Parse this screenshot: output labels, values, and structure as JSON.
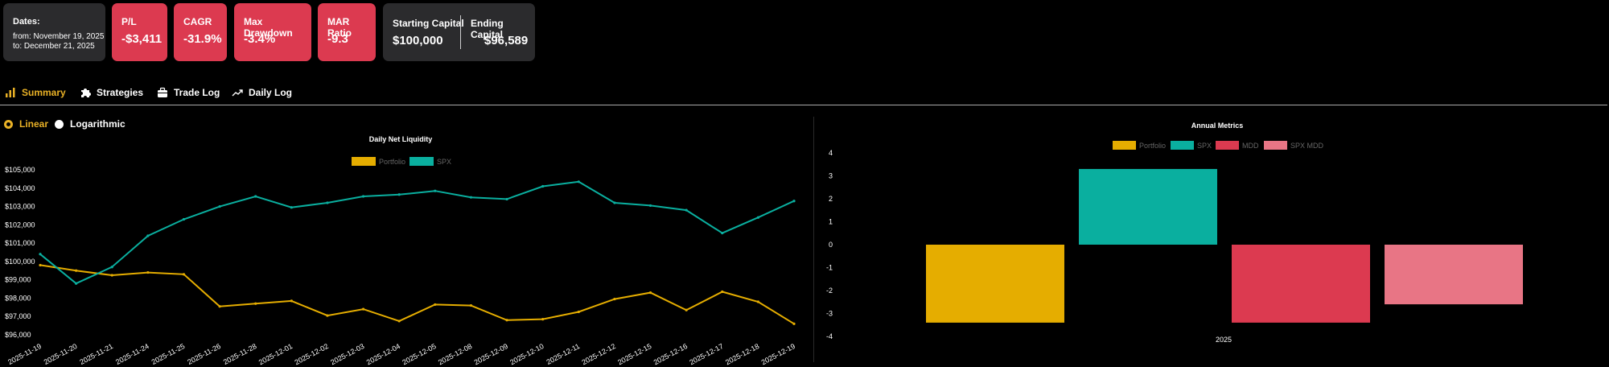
{
  "summary": {
    "dates": {
      "label": "Dates:",
      "from": "from: November 19, 2025",
      "to": "to: December 21, 2025"
    },
    "pl": {
      "label": "P/L",
      "value": "-$3,411"
    },
    "cagr": {
      "label": "CAGR",
      "value": "-31.9%"
    },
    "mdd": {
      "label": "Max Drawdown",
      "value": "-3.4%"
    },
    "mar": {
      "label": "MAR Ratio",
      "value": "-9.3"
    },
    "capital": {
      "start_label": "Starting Capital",
      "start_value": "$100,000",
      "end_label": "Ending Capital",
      "end_value": "$96,589"
    }
  },
  "tabs": [
    {
      "label": "Summary",
      "icon": "bar-chart-icon",
      "active": true
    },
    {
      "label": "Strategies",
      "icon": "puzzle-icon",
      "active": false
    },
    {
      "label": "Trade Log",
      "icon": "briefcase-icon",
      "active": false
    },
    {
      "label": "Daily Log",
      "icon": "trend-up-icon",
      "active": false
    }
  ],
  "scale": {
    "linear": "Linear",
    "logarithmic": "Logarithmic",
    "selected": "linear"
  },
  "colors": {
    "accent": "#e9b126",
    "portfolio": "#e5ad00",
    "spx": "#0aaf9f",
    "mdd": "#dc3a50",
    "spx_mdd": "#e87585",
    "negative_card": "#dc3a50",
    "dark_card": "#2b2b2d"
  },
  "chart_data": [
    {
      "type": "line",
      "title": "Daily Net Liquidity",
      "x": [
        "2025-11-19",
        "2025-11-20",
        "2025-11-21",
        "2025-11-24",
        "2025-11-25",
        "2025-11-26",
        "2025-11-28",
        "2025-12-01",
        "2025-12-02",
        "2025-12-03",
        "2025-12-04",
        "2025-12-05",
        "2025-12-08",
        "2025-12-09",
        "2025-12-10",
        "2025-12-11",
        "2025-12-12",
        "2025-12-15",
        "2025-12-16",
        "2025-12-17",
        "2025-12-18",
        "2025-12-19"
      ],
      "series": [
        {
          "name": "Portfolio",
          "values": [
            99800,
            99500,
            99250,
            99400,
            99300,
            97550,
            97700,
            97850,
            97050,
            97400,
            96750,
            97650,
            97600,
            96800,
            96850,
            97250,
            97950,
            98300,
            97350,
            98350,
            97800,
            96600
          ]
        },
        {
          "name": "SPX",
          "values": [
            100400,
            98800,
            99700,
            101400,
            102300,
            103000,
            103550,
            102950,
            103200,
            103550,
            103650,
            103850,
            103500,
            103400,
            104100,
            104350,
            103200,
            103050,
            102800,
            101550,
            102400,
            103300
          ]
        }
      ],
      "ylim": [
        96000,
        105000
      ],
      "yticks": [
        "$96,000",
        "$97,000",
        "$98,000",
        "$99,000",
        "$100,000",
        "$101,000",
        "$102,000",
        "$103,000",
        "$104,000",
        "$105,000"
      ],
      "legend": "top-center",
      "grid": false
    },
    {
      "type": "bar",
      "title": "Annual Metrics",
      "categories": [
        "2025"
      ],
      "series": [
        {
          "name": "Portfolio",
          "values": [
            -3.4
          ]
        },
        {
          "name": "SPX",
          "values": [
            3.3
          ]
        },
        {
          "name": "MDD",
          "values": [
            -3.4
          ]
        },
        {
          "name": "SPX MDD",
          "values": [
            -2.6
          ]
        }
      ],
      "ylim": [
        -4,
        4
      ],
      "yticks": [
        "-4",
        "-3",
        "-2",
        "-1",
        "0",
        "1",
        "2",
        "3",
        "4"
      ],
      "legend": "top-center",
      "grid": false
    }
  ]
}
